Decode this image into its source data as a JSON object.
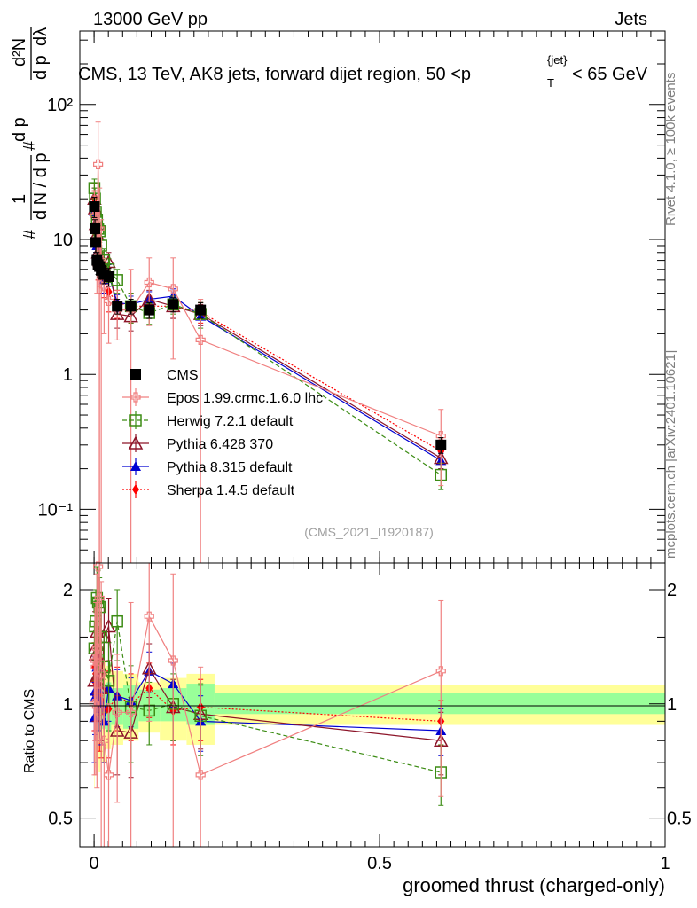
{
  "header": {
    "energy_label": "13000 GeV pp",
    "category_label": "Jets"
  },
  "side_labels": {
    "rivet": "Rivet 4.1.0, ≥ 100k events",
    "mcplots": "mcplots.cern.ch [arXiv:2401.10621]"
  },
  "colors": {
    "CMS": "#000000",
    "Epos": "#f08080",
    "Herwig": "#3c8c14",
    "Pythia6": "#8c1428",
    "Pythia8": "#0000d2",
    "Sherpa": "#ff0000",
    "band_inner": "#99ff99",
    "band_outer": "#ffff99"
  },
  "chart_data": {
    "type": "scatter",
    "title": "CMS, 13 TeV, AK8 jets, forward dijet region, 50 <p_T^{jet}< 65 GeV",
    "title_parts": {
      "main": "CMS, 13 TeV, AK8 jets, forward dijet region, 50 <p",
      "sup": "{jet}",
      "sub": "T",
      "tail": "< 65 GeV"
    },
    "analysis_id": "(CMS_2021_I1920187)",
    "xlabel": "groomed thrust (charged-only)",
    "ylabel_top": "1/N dN/dp_T d^2N/dp_T dλ",
    "ylabel_parts": {
      "hash": "#",
      "one": "1",
      "dN": "d N / d p",
      "dp": "d p",
      "d2N": "d²N",
      "dlam": "dλ",
      "T": "T"
    },
    "ylabel_ratio": "Ratio to CMS",
    "xlim": [
      -0.025,
      1.0
    ],
    "ylim_top": [
      0.04,
      350
    ],
    "ylim_ratio": [
      0.42,
      2.35
    ],
    "x_ticks": [
      "0",
      "0.5",
      "1"
    ],
    "x_tick_values": [
      0,
      0.5,
      1
    ],
    "y_ticks_top": [
      "10⁻¹",
      "1",
      "10",
      "10²"
    ],
    "y_tick_values_top": [
      0.1,
      1,
      10,
      100
    ],
    "y_ticks_ratio": [
      "0.5",
      "1",
      "2"
    ],
    "y_tick_values_ratio": [
      0.5,
      1,
      2
    ],
    "x": [
      0.0005,
      0.0015,
      0.003,
      0.005,
      0.007,
      0.0095,
      0.0125,
      0.0175,
      0.0255,
      0.0405,
      0.0645,
      0.0965,
      0.1385,
      0.1865,
      0.6075
    ],
    "x_bins": [
      [
        0,
        0.001
      ],
      [
        0.001,
        0.002
      ],
      [
        0.002,
        0.004
      ],
      [
        0.004,
        0.006
      ],
      [
        0.006,
        0.008
      ],
      [
        0.008,
        0.011
      ],
      [
        0.011,
        0.014
      ],
      [
        0.014,
        0.021
      ],
      [
        0.021,
        0.03
      ],
      [
        0.03,
        0.051
      ],
      [
        0.051,
        0.078
      ],
      [
        0.078,
        0.115
      ],
      [
        0.115,
        0.162
      ],
      [
        0.162,
        0.211
      ],
      [
        0.211,
        1.0
      ]
    ],
    "ratio_band_inner": [
      [
        0.7,
        1.3
      ],
      [
        0.8,
        1.18
      ],
      [
        0.85,
        1.14
      ],
      [
        0.88,
        1.13
      ],
      [
        0.84,
        1.15
      ],
      [
        0.84,
        1.14
      ],
      [
        0.85,
        1.12
      ],
      [
        0.86,
        1.13
      ],
      [
        0.84,
        1.14
      ],
      [
        0.88,
        1.1
      ],
      [
        0.86,
        1.12
      ],
      [
        0.9,
        1.09
      ],
      [
        0.9,
        1.1
      ],
      [
        0.88,
        1.13
      ],
      [
        0.94,
        1.07
      ]
    ],
    "ratio_band_outer": [
      [
        0.6,
        1.42
      ],
      [
        0.68,
        1.32
      ],
      [
        0.72,
        1.28
      ],
      [
        0.72,
        1.26
      ],
      [
        0.68,
        1.3
      ],
      [
        0.66,
        1.32
      ],
      [
        0.72,
        1.28
      ],
      [
        0.7,
        1.3
      ],
      [
        0.76,
        1.26
      ],
      [
        0.78,
        1.22
      ],
      [
        0.8,
        1.2
      ],
      [
        0.84,
        1.14
      ],
      [
        0.8,
        1.17
      ],
      [
        0.78,
        1.2
      ],
      [
        0.88,
        1.12
      ]
    ],
    "series": [
      {
        "name": "CMS",
        "marker": "square",
        "color": "#000000",
        "line": "none",
        "values": [
          17.5,
          12.0,
          9.5,
          7.0,
          6.5,
          6.3,
          5.9,
          5.5,
          5.3,
          3.2,
          3.2,
          3.0,
          3.3,
          3.0,
          0.3
        ],
        "err": [
          3,
          2,
          1.5,
          1,
          1,
          1,
          0.8,
          0.8,
          0.8,
          0.4,
          0.4,
          0.4,
          0.4,
          0.4,
          0.04
        ]
      },
      {
        "name": "Epos 1.99.crmc.1.6.0 lhc",
        "marker": "cross",
        "color": "#f08080",
        "line": "solid",
        "values": [
          17,
          15,
          12,
          10,
          36,
          12,
          7,
          4.5,
          3.5,
          3.0,
          3.0,
          4.8,
          4.3,
          1.8,
          0.35
        ],
        "err": [
          6,
          6,
          6,
          6,
          38,
          12,
          7,
          2.5,
          1.8,
          1.2,
          3.0,
          2.5,
          3.0,
          1.8,
          0.2
        ]
      },
      {
        "name": "Herwig 7.2.1 default",
        "marker": "open-square",
        "color": "#3c8c14",
        "line": "dashed",
        "values": [
          24,
          20,
          16,
          14,
          12,
          11.5,
          9,
          7,
          6,
          5.0,
          3.2,
          2.85,
          3.3,
          2.8,
          0.18
        ],
        "err": [
          4,
          4,
          3,
          3,
          3,
          2,
          2,
          1.5,
          1.2,
          1.0,
          0.8,
          0.5,
          0.5,
          0.6,
          0.04
        ]
      },
      {
        "name": "Pythia 6.428 370",
        "marker": "open-triangle",
        "color": "#8c1428",
        "line": "solid",
        "values": [
          20,
          17,
          13,
          11,
          8,
          7,
          6.5,
          6,
          6.8,
          2.8,
          2.7,
          3.6,
          3.2,
          2.8,
          0.24
        ],
        "err": [
          4,
          3,
          3,
          2,
          2,
          2,
          1.5,
          1.2,
          1.2,
          0.6,
          0.6,
          0.6,
          0.6,
          0.5,
          0.04
        ]
      },
      {
        "name": "Pythia 8.315 default",
        "marker": "triangle",
        "color": "#0000d2",
        "line": "solid",
        "values": [
          16,
          13,
          10,
          9,
          7.2,
          6.5,
          6,
          5,
          5.5,
          3.4,
          3.3,
          3.6,
          3.8,
          2.7,
          0.23
        ],
        "err": [
          3,
          2,
          2,
          1.5,
          1.2,
          1.2,
          1,
          1,
          1,
          0.5,
          0.5,
          0.5,
          0.5,
          0.4,
          0.03
        ]
      },
      {
        "name": "Sherpa 1.4.5 default",
        "marker": "diamond",
        "color": "#ff0000",
        "line": "dotted",
        "values": [
          20,
          15,
          11,
          9.5,
          8,
          6.5,
          6,
          5.2,
          4.1,
          3.4,
          3.2,
          3.2,
          3.2,
          2.9,
          0.27
        ],
        "err": [
          6,
          5,
          4,
          3,
          3,
          2,
          2,
          1.5,
          1.2,
          0.8,
          0.8,
          0.6,
          0.6,
          0.5,
          0.05
        ]
      }
    ],
    "ratio_series": [
      {
        "name": "Epos",
        "values": [
          1.0,
          1.3,
          1.25,
          1.4,
          2.3,
          1.9,
          1.2,
          0.8,
          0.65,
          0.95,
          0.95,
          1.7,
          1.3,
          0.65,
          1.22
        ],
        "err": [
          0.35,
          0.5,
          0.6,
          0.8,
          1.2,
          1.1,
          0.9,
          0.5,
          0.35,
          0.4,
          0.9,
          0.8,
          0.9,
          0.6,
          0.65
        ]
      },
      {
        "name": "Herwig",
        "values": [
          1.4,
          1.6,
          1.65,
          1.9,
          1.85,
          1.8,
          1.5,
          1.25,
          1.15,
          1.65,
          0.98,
          0.96,
          1.0,
          0.93,
          0.66
        ],
        "err": [
          0.25,
          0.3,
          0.35,
          0.4,
          0.4,
          0.35,
          0.35,
          0.3,
          0.3,
          0.35,
          0.28,
          0.18,
          0.2,
          0.2,
          0.12
        ]
      },
      {
        "name": "Pythia6",
        "values": [
          1.15,
          1.4,
          1.35,
          1.55,
          1.2,
          1.1,
          1.1,
          1.5,
          1.6,
          0.85,
          0.84,
          1.24,
          0.98,
          0.94,
          0.8
        ],
        "err": [
          0.25,
          0.35,
          0.3,
          0.35,
          0.3,
          0.3,
          0.3,
          0.3,
          0.3,
          0.2,
          0.2,
          0.2,
          0.18,
          0.18,
          0.15
        ]
      },
      {
        "name": "Pythia8",
        "values": [
          0.92,
          1.08,
          1.05,
          1.25,
          1.1,
          1.02,
          1.0,
          0.9,
          1.1,
          1.05,
          1.02,
          1.22,
          1.13,
          0.9,
          0.85
        ],
        "err": [
          0.22,
          0.25,
          0.25,
          0.3,
          0.25,
          0.22,
          0.22,
          0.2,
          0.2,
          0.18,
          0.15,
          0.15,
          0.15,
          0.15,
          0.12
        ]
      },
      {
        "name": "Sherpa",
        "values": [
          1.15,
          1.25,
          1.2,
          1.35,
          1.23,
          1.05,
          1.02,
          0.95,
          0.97,
          1.05,
          1.0,
          1.1,
          0.96,
          0.98,
          0.9
        ],
        "err": [
          0.3,
          0.35,
          0.35,
          0.35,
          0.3,
          0.3,
          0.3,
          0.25,
          0.25,
          0.2,
          0.2,
          0.18,
          0.18,
          0.18,
          0.12
        ]
      }
    ]
  }
}
